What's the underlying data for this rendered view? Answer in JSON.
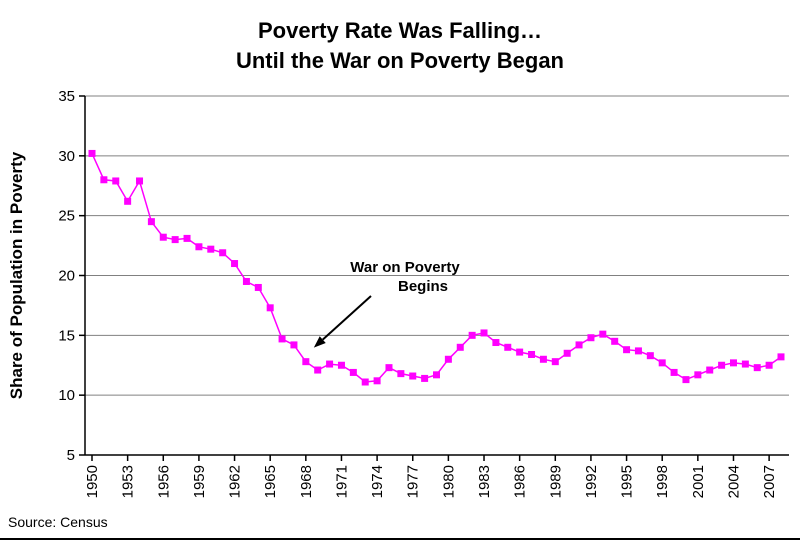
{
  "colors": {
    "line": "#FF00FF",
    "marker": "#FF00FF",
    "grid": "#808080",
    "axis": "#000000",
    "background": "#FFFFFF",
    "text": "#000000"
  },
  "chart_data": {
    "type": "line",
    "title": "Poverty Rate Was Falling… Until the War on Poverty Began",
    "title_line1": "Poverty Rate Was Falling…",
    "title_line2": "Until the War on Poverty Began",
    "ylabel": "Share of Population in Poverty",
    "xlabel": "",
    "source": "Source: Census",
    "ylim": [
      5,
      35
    ],
    "yticks": [
      5,
      10,
      15,
      20,
      25,
      30,
      35
    ],
    "grid": "horizontal",
    "legend": "none",
    "marker": "square",
    "xtick_labels": [
      "1950",
      "1953",
      "1956",
      "1959",
      "1962",
      "1965",
      "1968",
      "1971",
      "1974",
      "1977",
      "1980",
      "1983",
      "1986",
      "1989",
      "1992",
      "1995",
      "1998",
      "2001",
      "2004",
      "2007"
    ],
    "x": [
      1950,
      1951,
      1952,
      1953,
      1954,
      1955,
      1956,
      1957,
      1958,
      1959,
      1960,
      1961,
      1962,
      1963,
      1964,
      1965,
      1966,
      1967,
      1968,
      1969,
      1970,
      1971,
      1972,
      1973,
      1974,
      1975,
      1976,
      1977,
      1978,
      1979,
      1980,
      1981,
      1982,
      1983,
      1984,
      1985,
      1986,
      1987,
      1988,
      1989,
      1990,
      1991,
      1992,
      1993,
      1994,
      1995,
      1996,
      1997,
      1998,
      1999,
      2000,
      2001,
      2002,
      2003,
      2004,
      2005,
      2006,
      2007,
      2008
    ],
    "values": [
      30.2,
      28.0,
      27.9,
      26.2,
      27.9,
      24.5,
      23.2,
      23.0,
      23.1,
      22.4,
      22.2,
      21.9,
      21.0,
      19.5,
      19.0,
      17.3,
      14.7,
      14.2,
      12.8,
      12.1,
      12.6,
      12.5,
      11.9,
      11.1,
      11.2,
      12.3,
      11.8,
      11.6,
      11.4,
      11.7,
      13.0,
      14.0,
      15.0,
      15.2,
      14.4,
      14.0,
      13.6,
      13.4,
      13.0,
      12.8,
      13.5,
      14.2,
      14.8,
      15.1,
      14.5,
      13.8,
      13.7,
      13.3,
      12.7,
      11.9,
      11.3,
      11.7,
      12.1,
      12.5,
      12.7,
      12.6,
      12.3,
      12.5,
      13.2
    ],
    "annotation": {
      "text_line1": "War on Poverty",
      "text_line2": "Begins",
      "target_year": 1968
    }
  }
}
